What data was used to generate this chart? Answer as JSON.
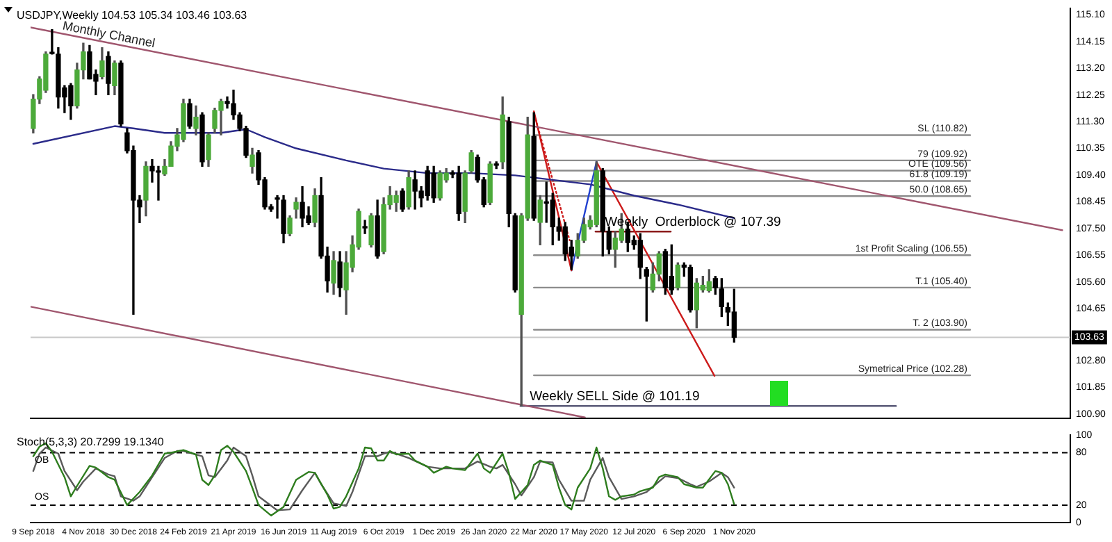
{
  "chart_data": [
    {
      "type": "candlestick",
      "title": "USDJPY,Weekly 104.53 105.34 103.46 103.63",
      "x": [
        "2018-09-09",
        "2018-09-16",
        "2018-09-23",
        "2018-09-30",
        "2018-10-07",
        "2018-10-14",
        "2018-10-21",
        "2018-10-28",
        "2018-11-04",
        "2018-11-11",
        "2018-11-18",
        "2018-11-25",
        "2018-12-02",
        "2018-12-09",
        "2018-12-16",
        "2018-12-23",
        "2018-12-30",
        "2019-01-06",
        "2019-01-13",
        "2019-01-20",
        "2019-01-27",
        "2019-02-03",
        "2019-02-10",
        "2019-02-17",
        "2019-02-24",
        "2019-03-03",
        "2019-03-10",
        "2019-03-17",
        "2019-03-24",
        "2019-03-31",
        "2019-04-07",
        "2019-04-14",
        "2019-04-21",
        "2019-04-28",
        "2019-05-05",
        "2019-05-12",
        "2019-05-19",
        "2019-05-26",
        "2019-06-02",
        "2019-06-09",
        "2019-06-16",
        "2019-06-23",
        "2019-06-30",
        "2019-07-07",
        "2019-07-14",
        "2019-07-21",
        "2019-07-28",
        "2019-08-04",
        "2019-08-11",
        "2019-08-18",
        "2019-08-25",
        "2019-09-01",
        "2019-09-08",
        "2019-09-15",
        "2019-09-22",
        "2019-09-29",
        "2019-10-06",
        "2019-10-13",
        "2019-10-20",
        "2019-10-27",
        "2019-11-03",
        "2019-11-10",
        "2019-11-17",
        "2019-11-24",
        "2019-12-01",
        "2019-12-08",
        "2019-12-15",
        "2019-12-22",
        "2019-12-29",
        "2020-01-05",
        "2020-01-12",
        "2020-01-19",
        "2020-01-26",
        "2020-02-02",
        "2020-02-09",
        "2020-02-16",
        "2020-02-23",
        "2020-03-01",
        "2020-03-08",
        "2020-03-15",
        "2020-03-22",
        "2020-03-29",
        "2020-04-05",
        "2020-04-12",
        "2020-04-19",
        "2020-04-26",
        "2020-05-03",
        "2020-05-10",
        "2020-05-17",
        "2020-05-24",
        "2020-05-31",
        "2020-06-07",
        "2020-06-14",
        "2020-06-21",
        "2020-06-28",
        "2020-07-05",
        "2020-07-12",
        "2020-07-19",
        "2020-07-26",
        "2020-08-02",
        "2020-08-09",
        "2020-08-16",
        "2020-08-23",
        "2020-08-30",
        "2020-09-06",
        "2020-09-13",
        "2020-09-20",
        "2020-09-27",
        "2020-10-04",
        "2020-10-11",
        "2020-10-18",
        "2020-10-25",
        "2020-11-01"
      ],
      "ohlc": [
        [
          111.06,
          112.26,
          110.9,
          112.1
        ],
        [
          112.1,
          112.9,
          111.94,
          112.82
        ],
        [
          112.42,
          113.78,
          112.34,
          113.7
        ],
        [
          113.74,
          114.57,
          113.7,
          113.72
        ],
        [
          113.7,
          113.93,
          111.78,
          112.18
        ],
        [
          112.5,
          112.58,
          111.62,
          112.18
        ],
        [
          112.58,
          112.66,
          111.38,
          111.86
        ],
        [
          111.86,
          113.38,
          111.78,
          113.14
        ],
        [
          113.14,
          114.09,
          112.82,
          113.78
        ],
        [
          113.78,
          114.01,
          112.82,
          112.82
        ],
        [
          112.98,
          113.14,
          112.26,
          112.74
        ],
        [
          112.9,
          113.93,
          112.82,
          113.46
        ],
        [
          113.62,
          113.78,
          112.26,
          112.66
        ],
        [
          112.58,
          113.46,
          112.26,
          113.38
        ],
        [
          113.38,
          113.46,
          111.14,
          111.22
        ],
        [
          110.9,
          111.06,
          110.19,
          110.27
        ],
        [
          110.27,
          110.43,
          104.45,
          108.51
        ],
        [
          108.51,
          108.67,
          107.71,
          108.27
        ],
        [
          108.51,
          109.87,
          107.95,
          109.71
        ],
        [
          109.71,
          109.95,
          109.15,
          109.55
        ],
        [
          109.52,
          109.71,
          108.51,
          109.5
        ],
        [
          109.44,
          109.95,
          109.39,
          109.71
        ],
        [
          109.71,
          110.59,
          109.71,
          110.43
        ],
        [
          110.43,
          111.06,
          110.27,
          110.83
        ],
        [
          110.67,
          112.1,
          110.59,
          111.94
        ],
        [
          111.94,
          112.1,
          111.06,
          111.14
        ],
        [
          111.06,
          111.86,
          110.83,
          111.46
        ],
        [
          111.54,
          111.62,
          109.71,
          109.87
        ],
        [
          109.95,
          110.9,
          109.71,
          110.83
        ],
        [
          111.06,
          111.78,
          110.9,
          111.7
        ],
        [
          111.7,
          112.1,
          110.83,
          112.02
        ],
        [
          112.02,
          112.18,
          111.78,
          111.94
        ],
        [
          111.94,
          112.42,
          111.38,
          111.54
        ],
        [
          111.54,
          111.62,
          110.98,
          111.06
        ],
        [
          111.06,
          111.14,
          110.03,
          110.11
        ],
        [
          109.71,
          110.35,
          109.47,
          110.11
        ],
        [
          110.19,
          110.27,
          109.07,
          109.23
        ],
        [
          109.23,
          109.31,
          108.19,
          108.27
        ],
        [
          108.27,
          108.35,
          108.11,
          108.19
        ],
        [
          108.56,
          108.67,
          107.87,
          108.54
        ],
        [
          108.51,
          108.67,
          106.99,
          107.32
        ],
        [
          107.32,
          107.95,
          107.24,
          107.87
        ],
        [
          108.19,
          108.59,
          107.87,
          108.43
        ],
        [
          108.43,
          108.99,
          107.56,
          107.87
        ],
        [
          107.95,
          108.27,
          107.64,
          107.71
        ],
        [
          107.72,
          108.91,
          107.56,
          108.67
        ],
        [
          108.67,
          109.31,
          106.44,
          106.52
        ],
        [
          106.52,
          106.84,
          105.24,
          105.64
        ],
        [
          105.56,
          106.68,
          105.16,
          106.36
        ],
        [
          106.31,
          106.68,
          105.08,
          105.4
        ],
        [
          105.32,
          106.68,
          104.45,
          106.28
        ],
        [
          106.12,
          107.24,
          105.96,
          106.92
        ],
        [
          106.84,
          108.19,
          106.76,
          108.11
        ],
        [
          107.53,
          107.79,
          107.32,
          107.52
        ],
        [
          106.92,
          108.03,
          106.84,
          107.95
        ],
        [
          107.95,
          108.51,
          106.44,
          106.52
        ],
        [
          106.68,
          108.59,
          106.6,
          108.35
        ],
        [
          108.35,
          108.99,
          108.19,
          108.67
        ],
        [
          108.43,
          108.83,
          108.11,
          108.67
        ],
        [
          108.83,
          108.91,
          108.11,
          108.19
        ],
        [
          108.27,
          109.55,
          108.19,
          109.31
        ],
        [
          109.23,
          109.55,
          108.19,
          108.83
        ],
        [
          108.83,
          108.99,
          108.27,
          108.59
        ],
        [
          109.55,
          109.71,
          108.51,
          108.67
        ],
        [
          109.47,
          109.71,
          108.43,
          108.59
        ],
        [
          108.59,
          109.55,
          108.51,
          109.47
        ],
        [
          109.23,
          109.63,
          109.15,
          109.47
        ],
        [
          109.45,
          109.55,
          109.31,
          109.43
        ],
        [
          109.47,
          109.71,
          107.79,
          108.03
        ],
        [
          108.11,
          109.55,
          107.71,
          109.47
        ],
        [
          109.55,
          110.27,
          109.47,
          110.19
        ],
        [
          110.03,
          110.11,
          109.15,
          109.23
        ],
        [
          109.23,
          109.31,
          108.27,
          108.35
        ],
        [
          108.43,
          109.87,
          108.35,
          109.79
        ],
        [
          109.77,
          109.87,
          109.63,
          109.75
        ],
        [
          109.87,
          112.18,
          109.63,
          111.54
        ],
        [
          111.3,
          111.46,
          107.56,
          108.03
        ],
        [
          107.95,
          108.03,
          105.24,
          105.32
        ],
        [
          104.45,
          108.03,
          101.19,
          107.95
        ],
        [
          107.87,
          111.46,
          107.79,
          110.83
        ],
        [
          110.78,
          111.62,
          107.79,
          107.87
        ],
        [
          107.72,
          108.67,
          106.92,
          108.51
        ],
        [
          108.43,
          109.15,
          107.72,
          108.4
        ],
        [
          108.51,
          108.75,
          106.92,
          107.56
        ],
        [
          107.56,
          107.87,
          107.08,
          107.4
        ],
        [
          107.56,
          107.72,
          106.36,
          106.6
        ],
        [
          106.84,
          107.08,
          106.04,
          106.52
        ],
        [
          106.52,
          107.32,
          106.44,
          107.08
        ],
        [
          107.08,
          107.87,
          107.0,
          107.64
        ],
        [
          107.56,
          107.95,
          107.48,
          107.79
        ],
        [
          107.64,
          109.87,
          107.56,
          109.55
        ],
        [
          109.55,
          109.63,
          106.52,
          107.4
        ],
        [
          107.4,
          107.56,
          106.6,
          106.76
        ],
        [
          106.76,
          107.4,
          106.12,
          107.16
        ],
        [
          107.08,
          108.03,
          107.0,
          107.48
        ],
        [
          107.48,
          107.72,
          106.68,
          107.0
        ],
        [
          107.08,
          107.24,
          106.76,
          106.92
        ],
        [
          107.08,
          107.32,
          105.72,
          106.12
        ],
        [
          106.04,
          106.12,
          104.21,
          105.8
        ],
        [
          105.32,
          106.28,
          105.24,
          105.88
        ],
        [
          105.88,
          106.68,
          105.64,
          106.6
        ],
        [
          106.68,
          106.76,
          105.16,
          105.4
        ],
        [
          105.8,
          106.92,
          105.16,
          105.32
        ],
        [
          105.4,
          106.28,
          105.32,
          106.2
        ],
        [
          106.2,
          106.28,
          105.8,
          106.12
        ],
        [
          106.12,
          106.2,
          104.53,
          104.61
        ],
        [
          104.61,
          105.72,
          103.97,
          105.56
        ],
        [
          105.32,
          105.8,
          105.24,
          105.48
        ],
        [
          105.29,
          106.04,
          105.24,
          105.61
        ],
        [
          105.72,
          105.8,
          105.16,
          105.4
        ],
        [
          105.35,
          105.72,
          104.37,
          104.72
        ],
        [
          104.69,
          104.85,
          104.05,
          104.53
        ],
        [
          104.53,
          105.34,
          103.46,
          103.63
        ]
      ],
      "xlim": [
        "2018-09-06",
        "2021-11-12"
      ],
      "ylim": [
        100.76,
        115.32
      ],
      "yticks": [
        {
          "value": 115.1,
          "label": "115.10"
        },
        {
          "value": 114.15,
          "label": "114.15"
        },
        {
          "value": 113.2,
          "label": "113.20"
        },
        {
          "value": 112.25,
          "label": "112.25"
        },
        {
          "value": 111.3,
          "label": "111.30"
        },
        {
          "value": 110.35,
          "label": "110.35"
        },
        {
          "value": 109.4,
          "label": "109.40"
        },
        {
          "value": 108.45,
          "label": "108.45"
        },
        {
          "value": 107.5,
          "label": "107.50"
        },
        {
          "value": 106.55,
          "label": "106.55"
        },
        {
          "value": 105.6,
          "label": "105.60"
        },
        {
          "value": 104.65,
          "label": "104.65"
        },
        {
          "value": 102.8,
          "label": "102.80"
        },
        {
          "value": 101.85,
          "label": "101.85"
        },
        {
          "value": 100.9,
          "label": "100.90"
        }
      ],
      "tick_labels": "y",
      "series": [
        {
          "type": "line",
          "color": "#2b2b8a",
          "x": [
            "2018-09-09",
            "2018-12-09",
            "2018-12-30",
            "2019-02-03",
            "2019-04-07",
            "2019-05-05",
            "2019-05-26",
            "2019-06-30",
            "2019-08-25",
            "2019-10-06",
            "2019-11-24",
            "2020-01-12",
            "2020-03-01",
            "2020-03-22",
            "2020-05-24",
            "2020-07-12",
            "2020-08-30",
            "2020-11-01"
          ],
          "values": [
            110.51,
            111.14,
            111.06,
            110.9,
            110.9,
            111.03,
            110.75,
            110.35,
            109.92,
            109.63,
            109.47,
            109.47,
            109.39,
            109.31,
            109.07,
            108.67,
            108.35,
            107.87
          ]
        },
        {
          "type": "line",
          "name": "Monthly Channel",
          "color": "#a0566e",
          "x": [
            "2018-09-06",
            "2021-11-03"
          ],
          "values": [
            114.65,
            107.44
          ]
        },
        {
          "type": "line",
          "color": "#a0566e",
          "x": [
            "2018-09-06",
            "2020-05-18"
          ],
          "values": [
            104.72,
            100.78
          ]
        },
        {
          "type": "line",
          "color": "#cc1a1a",
          "x": [
            "2020-03-22",
            "2020-05-03"
          ],
          "values": [
            111.67,
            106.01
          ]
        },
        {
          "type": "line",
          "color": "#cc1a1a",
          "line_style": "dotted",
          "x": [
            "2020-03-24",
            "2020-05-01"
          ],
          "values": [
            111.38,
            107.08
          ]
        },
        {
          "type": "line",
          "color": "#2040d0",
          "x": [
            "2020-05-03",
            "2020-05-31"
          ],
          "values": [
            106.01,
            109.87
          ]
        },
        {
          "type": "line",
          "color": "#cc1a1a",
          "x": [
            "2020-05-31",
            "2020-10-10"
          ],
          "values": [
            109.87,
            102.26
          ]
        },
        {
          "type": "line",
          "name": "SL (110.82)",
          "color": "#8c8c8c",
          "x": [
            "2020-03-22",
            "2021-07-23"
          ],
          "values": [
            110.82,
            110.82
          ]
        },
        {
          "type": "line",
          "name": "79 (109.92)",
          "color": "#8c8c8c",
          "x": [
            "2020-03-22",
            "2021-07-23"
          ],
          "values": [
            109.92,
            109.92
          ]
        },
        {
          "type": "line",
          "name": "OTE (109.56)",
          "color": "#8c8c8c",
          "x": [
            "2020-03-22",
            "2021-07-23"
          ],
          "values": [
            109.56,
            109.56
          ]
        },
        {
          "type": "line",
          "name": "61.8 (109.19)",
          "color": "#8c8c8c",
          "x": [
            "2020-03-22",
            "2021-07-23"
          ],
          "values": [
            109.19,
            109.19
          ]
        },
        {
          "type": "line",
          "name": "50.0 (108.65)",
          "color": "#8c8c8c",
          "x": [
            "2020-03-22",
            "2021-07-23"
          ],
          "values": [
            108.65,
            108.65
          ]
        },
        {
          "type": "line",
          "name": "1st Profit Scaling (106.55)",
          "color": "#8c8c8c",
          "x": [
            "2020-03-22",
            "2021-07-23"
          ],
          "values": [
            106.55,
            106.55
          ]
        },
        {
          "type": "line",
          "name": "T.1 (105.40)",
          "color": "#8c8c8c",
          "x": [
            "2020-03-22",
            "2021-07-23"
          ],
          "values": [
            105.4,
            105.4
          ]
        },
        {
          "type": "line",
          "name": "T. 2 (103.90)",
          "color": "#8c8c8c",
          "x": [
            "2020-03-22",
            "2021-07-23"
          ],
          "values": [
            103.9,
            103.9
          ]
        },
        {
          "type": "line",
          "name": "Symetrical Price (102.28)",
          "color": "#8c8c8c",
          "x": [
            "2020-03-22",
            "2021-07-23"
          ],
          "values": [
            102.28,
            102.28
          ]
        },
        {
          "type": "line",
          "color": "#8b1a1a",
          "x": [
            "2020-05-30",
            "2020-08-22"
          ],
          "values": [
            107.39,
            107.39
          ]
        },
        {
          "type": "line",
          "color": "#5a5a78",
          "x": [
            "2020-03-07",
            "2021-05-01"
          ],
          "values": [
            101.19,
            101.19
          ]
        }
      ],
      "ref_lines": [
        {
          "axis": "y",
          "value": 103.63,
          "label": "103.63",
          "color": "#c8c8c8"
        }
      ],
      "annotations": [
        {
          "text": "Weekly  Orderblock @ 107.39",
          "x": "2020-05-31",
          "y": 107.39
        },
        {
          "text": "Weekly SELL Side @ 101.19",
          "x": "2020-03-08",
          "y": 101.19
        }
      ]
    },
    {
      "type": "line",
      "title": "Stoch(5,3,3) 20.7299 19.1340",
      "xlim": [
        "2018-09-06",
        "2021-11-12"
      ],
      "xticks": [
        {
          "value": "2018-09-09",
          "label": "9 Sep 2018"
        },
        {
          "value": "2018-11-04",
          "label": "4 Nov 2018"
        },
        {
          "value": "2018-12-30",
          "label": "30 Dec 2018"
        },
        {
          "value": "2019-02-24",
          "label": "24 Feb 2019"
        },
        {
          "value": "2019-04-21",
          "label": "21 Apr 2019"
        },
        {
          "value": "2019-06-16",
          "label": "16 Jun 2019"
        },
        {
          "value": "2019-08-11",
          "label": "11 Aug 2019"
        },
        {
          "value": "2019-10-06",
          "label": "6 Oct 2019"
        },
        {
          "value": "2019-12-01",
          "label": "1 Dec 2019"
        },
        {
          "value": "2020-01-26",
          "label": "26 Jan 2020"
        },
        {
          "value": "2020-03-22",
          "label": "22 Mar 2020"
        },
        {
          "value": "2020-05-17",
          "label": "17 May 2020"
        },
        {
          "value": "2020-07-12",
          "label": "12 Jul 2020"
        },
        {
          "value": "2020-09-06",
          "label": "6 Sep 2020"
        },
        {
          "value": "2020-11-01",
          "label": "1 Nov 2020"
        }
      ],
      "ylim": [
        0,
        100
      ],
      "yticks": [
        100,
        80,
        20,
        0
      ],
      "series": [
        {
          "color": "#2e7d1e",
          "x": [
            "2018-09-09",
            "2018-09-16",
            "2018-09-23",
            "2018-09-30",
            "2018-10-14",
            "2018-10-21",
            "2018-10-28",
            "2018-11-11",
            "2018-11-18",
            "2018-12-02",
            "2018-12-09",
            "2018-12-23",
            "2019-01-06",
            "2019-01-20",
            "2019-02-03",
            "2019-02-10",
            "2019-02-24",
            "2019-03-10",
            "2019-03-17",
            "2019-03-24",
            "2019-03-31",
            "2019-04-07",
            "2019-04-14",
            "2019-04-21",
            "2019-05-05",
            "2019-05-12",
            "2019-05-19",
            "2019-06-02",
            "2019-06-16",
            "2019-06-30",
            "2019-07-14",
            "2019-07-21",
            "2019-08-04",
            "2019-08-11",
            "2019-08-18",
            "2019-08-25",
            "2019-09-08",
            "2019-09-15",
            "2019-09-22",
            "2019-09-29",
            "2019-10-06",
            "2019-10-13",
            "2019-10-20",
            "2019-11-03",
            "2019-11-10",
            "2019-11-24",
            "2019-12-01",
            "2019-12-15",
            "2019-12-22",
            "2020-01-05",
            "2020-01-19",
            "2020-01-26",
            "2020-02-02",
            "2020-02-16",
            "2020-02-23",
            "2020-03-01",
            "2020-03-15",
            "2020-03-22",
            "2020-03-29",
            "2020-04-12",
            "2020-04-19",
            "2020-04-26",
            "2020-05-03",
            "2020-05-10",
            "2020-05-24",
            "2020-05-31",
            "2020-06-07",
            "2020-06-14",
            "2020-06-21",
            "2020-06-28",
            "2020-07-12",
            "2020-07-19",
            "2020-08-02",
            "2020-08-09",
            "2020-08-16",
            "2020-08-30",
            "2020-09-06",
            "2020-09-20",
            "2020-09-27",
            "2020-10-11",
            "2020-10-18",
            "2020-10-25",
            "2020-11-01"
          ],
          "values": [
            76,
            87,
            91,
            81,
            52,
            30,
            42,
            65,
            63,
            52,
            49,
            20,
            35,
            54,
            79,
            80,
            83,
            78,
            49,
            43,
            54,
            83,
            88,
            81,
            59,
            40,
            20,
            8,
            18,
            49,
            58,
            57,
            32,
            16,
            18,
            30,
            62,
            86,
            85,
            71,
            71,
            82,
            78,
            79,
            71,
            64,
            57,
            64,
            62,
            60,
            79,
            62,
            57,
            79,
            57,
            27,
            43,
            66,
            71,
            66,
            40,
            20,
            15,
            40,
            62,
            86,
            62,
            30,
            26,
            30,
            32,
            36,
            40,
            52,
            55,
            52,
            44,
            40,
            40,
            59,
            57,
            44,
            21
          ]
        },
        {
          "color": "#5a5a5a",
          "x": [
            "2018-09-09",
            "2018-09-16",
            "2018-09-23",
            "2018-10-07",
            "2018-10-14",
            "2018-10-28",
            "2018-11-04",
            "2018-11-18",
            "2018-12-02",
            "2018-12-09",
            "2018-12-16",
            "2018-12-30",
            "2019-01-06",
            "2019-01-20",
            "2019-02-03",
            "2019-02-17",
            "2019-02-24",
            "2019-03-17",
            "2019-03-24",
            "2019-03-31",
            "2019-04-14",
            "2019-04-21",
            "2019-05-05",
            "2019-05-12",
            "2019-05-19",
            "2019-06-09",
            "2019-06-23",
            "2019-07-07",
            "2019-07-21",
            "2019-07-28",
            "2019-08-11",
            "2019-08-25",
            "2019-09-01",
            "2019-09-15",
            "2019-09-29",
            "2019-10-06",
            "2019-10-13",
            "2019-10-20",
            "2019-11-03",
            "2019-11-24",
            "2019-12-08",
            "2019-12-22",
            "2020-01-05",
            "2020-01-19",
            "2020-02-02",
            "2020-02-09",
            "2020-02-16",
            "2020-03-01",
            "2020-03-08",
            "2020-03-22",
            "2020-03-29",
            "2020-04-12",
            "2020-04-19",
            "2020-05-03",
            "2020-05-17",
            "2020-05-24",
            "2020-06-07",
            "2020-06-14",
            "2020-06-28",
            "2020-07-12",
            "2020-07-26",
            "2020-08-02",
            "2020-08-16",
            "2020-08-30",
            "2020-09-13",
            "2020-09-20",
            "2020-10-04",
            "2020-10-18",
            "2020-10-25",
            "2020-11-01"
          ],
          "values": [
            59,
            79,
            86,
            79,
            59,
            37,
            47,
            62,
            55,
            53,
            30,
            25,
            30,
            52,
            74,
            82,
            82,
            76,
            54,
            52,
            71,
            86,
            76,
            54,
            30,
            14,
            15,
            37,
            57,
            44,
            22,
            19,
            35,
            76,
            76,
            79,
            81,
            79,
            74,
            64,
            62,
            62,
            62,
            70,
            64,
            62,
            66,
            44,
            31,
            52,
            70,
            69,
            49,
            25,
            25,
            49,
            74,
            52,
            27,
            30,
            35,
            41,
            53,
            51,
            44,
            41,
            47,
            57,
            52,
            40
          ]
        }
      ],
      "ref_lines": [
        {
          "axis": "y",
          "value": 80,
          "label": "OB",
          "color": "#000000",
          "line_style": "dashed"
        },
        {
          "axis": "y",
          "value": 20,
          "label": "OS",
          "color": "#000000",
          "line_style": "dashed"
        }
      ]
    }
  ]
}
